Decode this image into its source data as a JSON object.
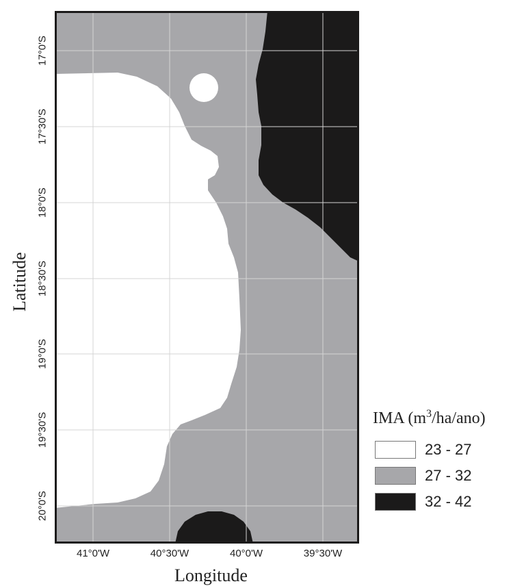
{
  "map": {
    "x_axis_title": "Longitude",
    "y_axis_title": "Latitude",
    "x_ticks": [
      "41°0'W",
      "40°30'W",
      "40°0'W",
      "39°30'W"
    ],
    "y_ticks": [
      "17°0'S",
      "17°30'S",
      "18°0'S",
      "18°30'S",
      "19°0'S",
      "19°30'S",
      "20°0'S"
    ],
    "gridlines": true
  },
  "legend": {
    "title_prefix": "IMA (m",
    "title_sup": "3",
    "title_suffix": "/ha/ano)",
    "items": [
      {
        "label": "23 - 27",
        "color": "#ffffff"
      },
      {
        "label": "27 - 32",
        "color": "#a7a7aa"
      },
      {
        "label": "32 - 42",
        "color": "#1b1a1a"
      }
    ]
  },
  "colors": {
    "class_low": "#ffffff",
    "class_mid": "#a7a7aa",
    "class_high": "#1b1a1a",
    "frame": "#1b1a1a",
    "grid": "#d8d8d8"
  }
}
